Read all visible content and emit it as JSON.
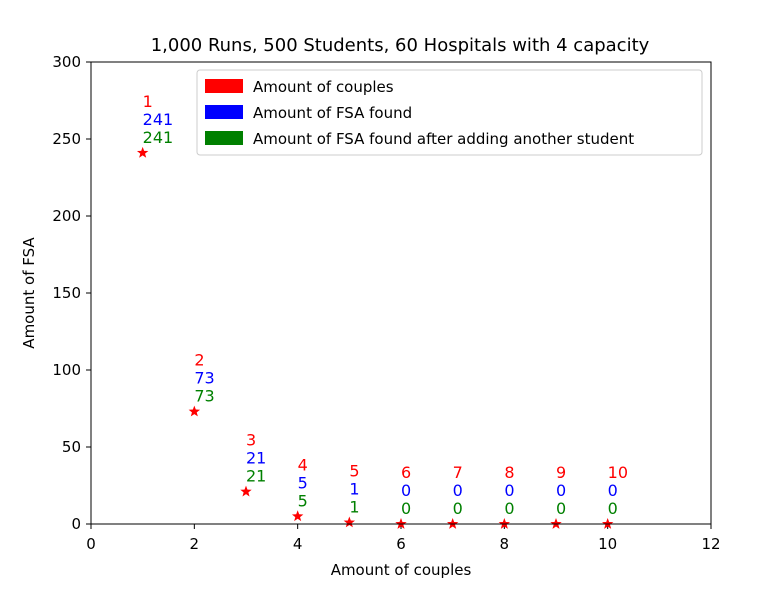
{
  "chart_data": {
    "type": "scatter",
    "title": "1,000 Runs, 500 Students, 60 Hospitals with 4 capacity",
    "xlabel": "Amount of couples",
    "ylabel": "Amount of FSA",
    "xlim": [
      0,
      12
    ],
    "ylim": [
      0,
      300
    ],
    "xticks": [
      0,
      2,
      4,
      6,
      8,
      10,
      12
    ],
    "yticks": [
      0,
      50,
      100,
      150,
      200,
      250,
      300
    ],
    "grid": false,
    "legend_position": "top-right",
    "legend": [
      {
        "label": "Amount of couples",
        "color": "#ff0000"
      },
      {
        "label": "Amount of FSA found",
        "color": "#0000ff"
      },
      {
        "label": "Amount of FSA found after adding another student",
        "color": "#008000"
      }
    ],
    "marker": "star",
    "marker_color": "#ff0000",
    "points": [
      {
        "x": 1,
        "y": 241,
        "couples_label": "1",
        "fsa_label": "241",
        "fsa_after_label": "241"
      },
      {
        "x": 2,
        "y": 73,
        "couples_label": "2",
        "fsa_label": "73",
        "fsa_after_label": "73"
      },
      {
        "x": 3,
        "y": 21,
        "couples_label": "3",
        "fsa_label": "21",
        "fsa_after_label": "21"
      },
      {
        "x": 4,
        "y": 5,
        "couples_label": "4",
        "fsa_label": "5",
        "fsa_after_label": "5"
      },
      {
        "x": 5,
        "y": 1,
        "couples_label": "5",
        "fsa_label": "1",
        "fsa_after_label": "1"
      },
      {
        "x": 6,
        "y": 0,
        "couples_label": "6",
        "fsa_label": "0",
        "fsa_after_label": "0"
      },
      {
        "x": 7,
        "y": 0,
        "couples_label": "7",
        "fsa_label": "0",
        "fsa_after_label": "0"
      },
      {
        "x": 8,
        "y": 0,
        "couples_label": "8",
        "fsa_label": "0",
        "fsa_after_label": "0"
      },
      {
        "x": 9,
        "y": 0,
        "couples_label": "9",
        "fsa_label": "0",
        "fsa_after_label": "0"
      },
      {
        "x": 10,
        "y": 0,
        "couples_label": "10",
        "fsa_label": "0",
        "fsa_after_label": "0"
      }
    ]
  }
}
